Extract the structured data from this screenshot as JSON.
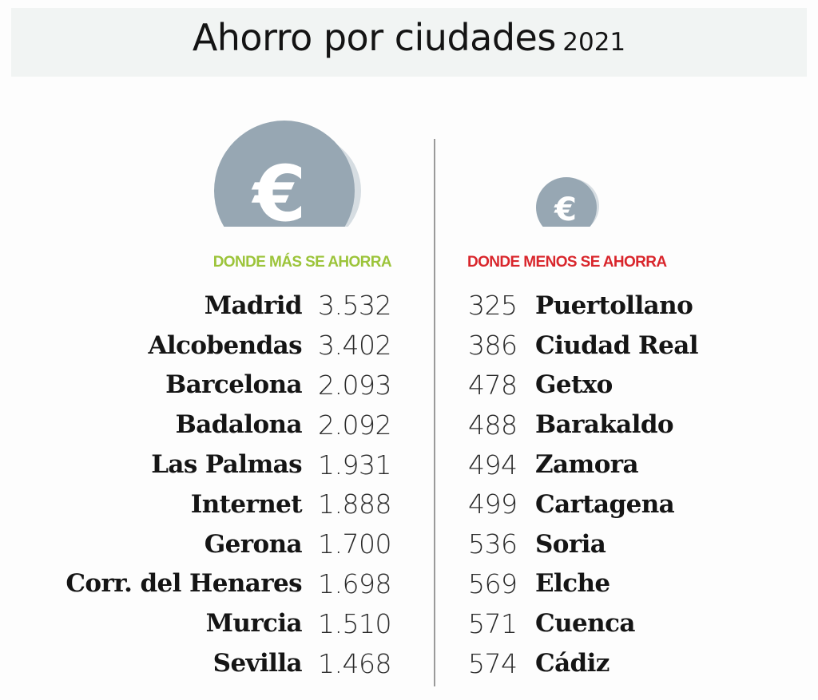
{
  "title": "Ahorro por ciudades",
  "year": "2021",
  "icons": {
    "large_coin": "euro-coin-icon",
    "small_coin": "euro-coin-icon",
    "coin_color": "#97a7b3",
    "coin_shadow": "#d6dde2",
    "symbol": "€"
  },
  "colors": {
    "most_heading": "#9cc43a",
    "least_heading": "#d9262c"
  },
  "chart_data": {
    "type": "table",
    "title": "Ahorro por ciudades 2021",
    "tables": [
      {
        "heading": "DONDE MÁS SE AHORRA",
        "rows": [
          {
            "city": "Madrid",
            "value": "3.532"
          },
          {
            "city": "Alcobendas",
            "value": "3.402"
          },
          {
            "city": "Barcelona",
            "value": "2.093"
          },
          {
            "city": "Badalona",
            "value": "2.092"
          },
          {
            "city": "Las Palmas",
            "value": "1.931"
          },
          {
            "city": "Internet",
            "value": "1.888"
          },
          {
            "city": "Gerona",
            "value": "1.700"
          },
          {
            "city": "Corr. del Henares",
            "value": "1.698"
          },
          {
            "city": "Murcia",
            "value": "1.510"
          },
          {
            "city": "Sevilla",
            "value": "1.468"
          }
        ]
      },
      {
        "heading": "DONDE MENOS SE AHORRA",
        "rows": [
          {
            "city": "Puertollano",
            "value": "325"
          },
          {
            "city": "Ciudad Real",
            "value": "386"
          },
          {
            "city": "Getxo",
            "value": "478"
          },
          {
            "city": "Barakaldo",
            "value": "488"
          },
          {
            "city": "Zamora",
            "value": "494"
          },
          {
            "city": "Cartagena",
            "value": "499"
          },
          {
            "city": "Soria",
            "value": "536"
          },
          {
            "city": "Elche",
            "value": "569"
          },
          {
            "city": "Cuenca",
            "value": "571"
          },
          {
            "city": "Cádiz",
            "value": "574"
          }
        ]
      }
    ]
  }
}
